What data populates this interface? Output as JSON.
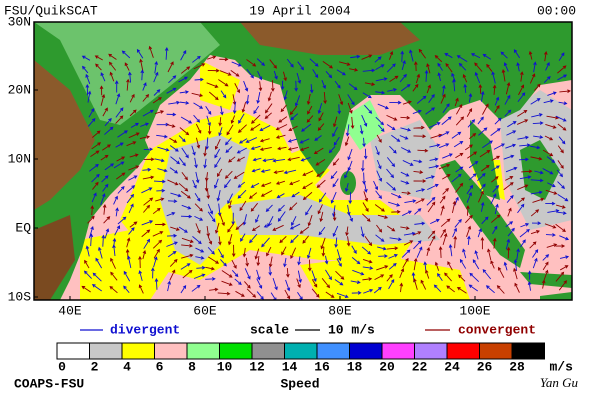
{
  "header": {
    "left": "FSU/QuikSCAT",
    "center": "19 April 2004",
    "right": "00:00"
  },
  "map": {
    "lat_labels": [
      "30N",
      "20N",
      "10N",
      "EQ",
      "10S"
    ],
    "lon_labels": [
      "40E",
      "60E",
      "80E",
      "100E"
    ]
  },
  "legend": {
    "divergent": "divergent",
    "scale": "scale",
    "scale_value": "10 m/s",
    "convergent": "convergent",
    "divergent_color": "#1010d0",
    "convergent_color": "#900000"
  },
  "colorbar": {
    "colors": [
      "#ffffff",
      "#c8c8c8",
      "#ffff00",
      "#ffc0c0",
      "#90ff90",
      "#00e000",
      "#909090",
      "#00b0b0",
      "#4090ff",
      "#0000d0",
      "#ff40ff",
      "#b080ff",
      "#ff0000",
      "#c84000",
      "#000000"
    ],
    "labels": [
      0,
      2,
      4,
      6,
      8,
      10,
      12,
      14,
      16,
      18,
      20,
      22,
      24,
      26,
      28
    ],
    "unit": "m/s",
    "title": "Speed"
  },
  "footer": {
    "left": "COAPS-FSU",
    "right": "Yan Gu"
  }
}
